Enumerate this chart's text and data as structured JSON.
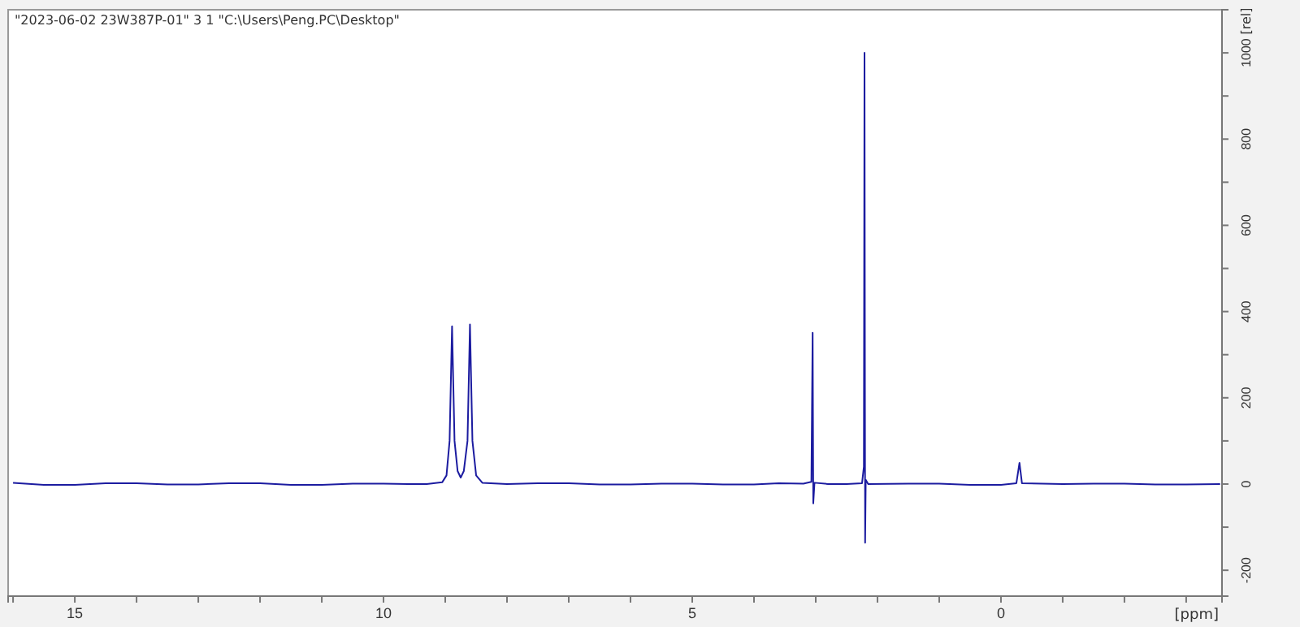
{
  "chart_data": {
    "type": "line",
    "title": "\"2023-06-02 23W387P-01\"  3  1  \"C:\\Users\\Peng.PC\\Desktop\"",
    "xlabel": "[ppm]",
    "ylabel": "[rel]",
    "xlim": [
      16.08,
      -3.58
    ],
    "ylim": [
      -260,
      1100
    ],
    "xticks": [
      {
        "value": 16,
        "label": null
      },
      15,
      {
        "value": 14,
        "label": null
      },
      {
        "value": 13,
        "label": null
      },
      {
        "value": 12,
        "label": null
      },
      {
        "value": 11,
        "label": null
      },
      10,
      {
        "value": 9,
        "label": null
      },
      {
        "value": 8,
        "label": null
      },
      {
        "value": 7,
        "label": null
      },
      {
        "value": 6,
        "label": null
      },
      5,
      {
        "value": 4,
        "label": null
      },
      {
        "value": 3,
        "label": null
      },
      {
        "value": 2,
        "label": null
      },
      {
        "value": 1,
        "label": null
      },
      0,
      {
        "value": -1,
        "label": null
      },
      {
        "value": -2,
        "label": null
      },
      {
        "value": -3,
        "label": null
      }
    ],
    "yticks": [
      -200,
      {
        "value": -100,
        "label": null
      },
      0,
      {
        "value": 100,
        "label": null
      },
      200,
      {
        "value": 300,
        "label": null
      },
      400,
      {
        "value": 500,
        "label": null
      },
      600,
      {
        "value": 700,
        "label": null
      },
      800,
      {
        "value": 900,
        "label": null
      },
      1000
    ],
    "grid": false,
    "marker": "none",
    "line_style": "solid",
    "series": [
      {
        "color": "#1c1ca0",
        "x": [
          16.0,
          15.5,
          15,
          14.5,
          14,
          13.5,
          13,
          12.5,
          12,
          11.5,
          11,
          10.5,
          10,
          9.6,
          9.3,
          9.05,
          8.98,
          8.93,
          8.89,
          8.85,
          8.8,
          8.75,
          8.7,
          8.64,
          8.6,
          8.56,
          8.5,
          8.4,
          8,
          7.5,
          7,
          6.5,
          6,
          5.5,
          5,
          4.5,
          4,
          3.6,
          3.2,
          3.07,
          3.05,
          3.04,
          3.02,
          2.8,
          2.5,
          2.25,
          2.22,
          2.21,
          2.2,
          2.19,
          2.15,
          1.5,
          1,
          0.5,
          0,
          -0.25,
          -0.3,
          -0.34,
          -1,
          -1.5,
          -2,
          -2.5,
          -3,
          -3.55
        ],
        "values": [
          3,
          -2,
          -2,
          2,
          2,
          -1,
          -1,
          2,
          2,
          -2,
          -2,
          1,
          1,
          0,
          0,
          4,
          20,
          100,
          366,
          100,
          30,
          15,
          30,
          100,
          370,
          100,
          20,
          3,
          0,
          2,
          2,
          -1,
          -1,
          1,
          1,
          -1,
          -1,
          2,
          1,
          5,
          351,
          -45,
          3,
          0,
          0,
          2,
          40,
          1000,
          -136,
          10,
          0,
          1,
          1,
          -2,
          -2,
          2,
          49,
          2,
          0,
          1,
          1,
          -1,
          -1,
          0
        ]
      }
    ]
  }
}
